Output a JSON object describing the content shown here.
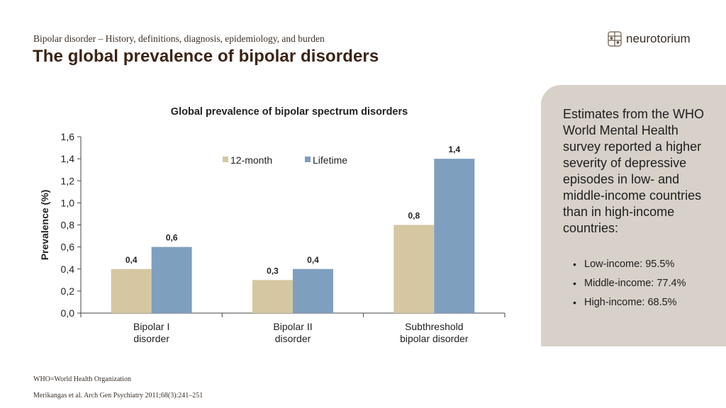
{
  "header": {
    "breadcrumb": "Bipolar disorder – History, definitions, diagnosis, epidemiology, and burden",
    "title": "The global prevalence of bipolar disorders",
    "logo_text": "neurotorium",
    "logo_icon": "brain-grid-icon"
  },
  "panel": {
    "text": "Estimates from the WHO World Mental Health survey reported a higher severity of depressive episodes in low- and middle-income countries than in high-income countries:",
    "items": [
      "Low-income: 95.5%",
      "Middle-income: 77.4%",
      "High-income: 68.5%"
    ]
  },
  "footnotes": {
    "abbrev": "WHO=World Health Organization",
    "reference": "Merikangas et al. Arch Gen Psychiatry 2011;68(3):241–251"
  },
  "colors": {
    "series_12_month": "#d5c7a1",
    "series_lifetime": "#7f9fbf",
    "title_brown": "#3b2416",
    "chart_title": "#4a4a2a",
    "panel_bg": "#d8d1c9"
  },
  "chart_data": {
    "type": "bar",
    "title": "Global prevalence of bipolar spectrum disorders",
    "xlabel": "",
    "ylabel": "Prevalence (%)",
    "ylim": [
      0,
      1.6
    ],
    "yticks": [
      "0,0",
      "0,2",
      "0,4",
      "0,6",
      "0,8",
      "1,0",
      "1,2",
      "1,4",
      "1,6"
    ],
    "categories": [
      [
        "Bipolar I",
        "disorder"
      ],
      [
        "Bipolar II",
        "disorder"
      ],
      [
        "Subthreshold",
        "bipolar disorder"
      ]
    ],
    "series": [
      {
        "name": "12-month",
        "values": [
          0.4,
          0.3,
          0.8
        ],
        "labels": [
          "0,4",
          "0,3",
          "0,8"
        ]
      },
      {
        "name": "Lifetime",
        "values": [
          0.6,
          0.4,
          1.4
        ],
        "labels": [
          "0,6",
          "0,4",
          "1,4"
        ]
      }
    ],
    "legend": "top-center",
    "grid": false
  }
}
